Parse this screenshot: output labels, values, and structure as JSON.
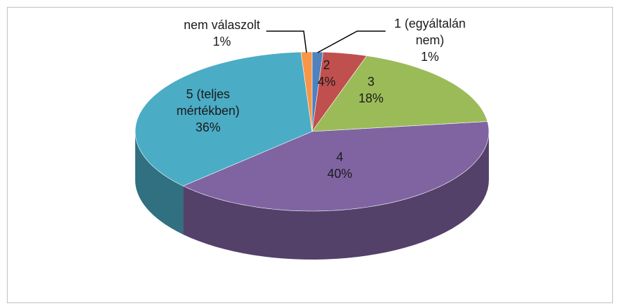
{
  "chart_data": {
    "type": "pie",
    "categories": [
      "1 (egyáltalán nem)",
      "2",
      "3",
      "4",
      "5 (teljes mértékben)",
      "nem válaszolt"
    ],
    "values": [
      1,
      4,
      18,
      40,
      36,
      1
    ],
    "value_labels": [
      "1%",
      "4%",
      "18%",
      "40%",
      "36%",
      "1%"
    ],
    "colors": [
      "#4f81bd",
      "#c0504d",
      "#9bbb59",
      "#8064a2",
      "#4bacc6",
      "#f79646"
    ]
  }
}
